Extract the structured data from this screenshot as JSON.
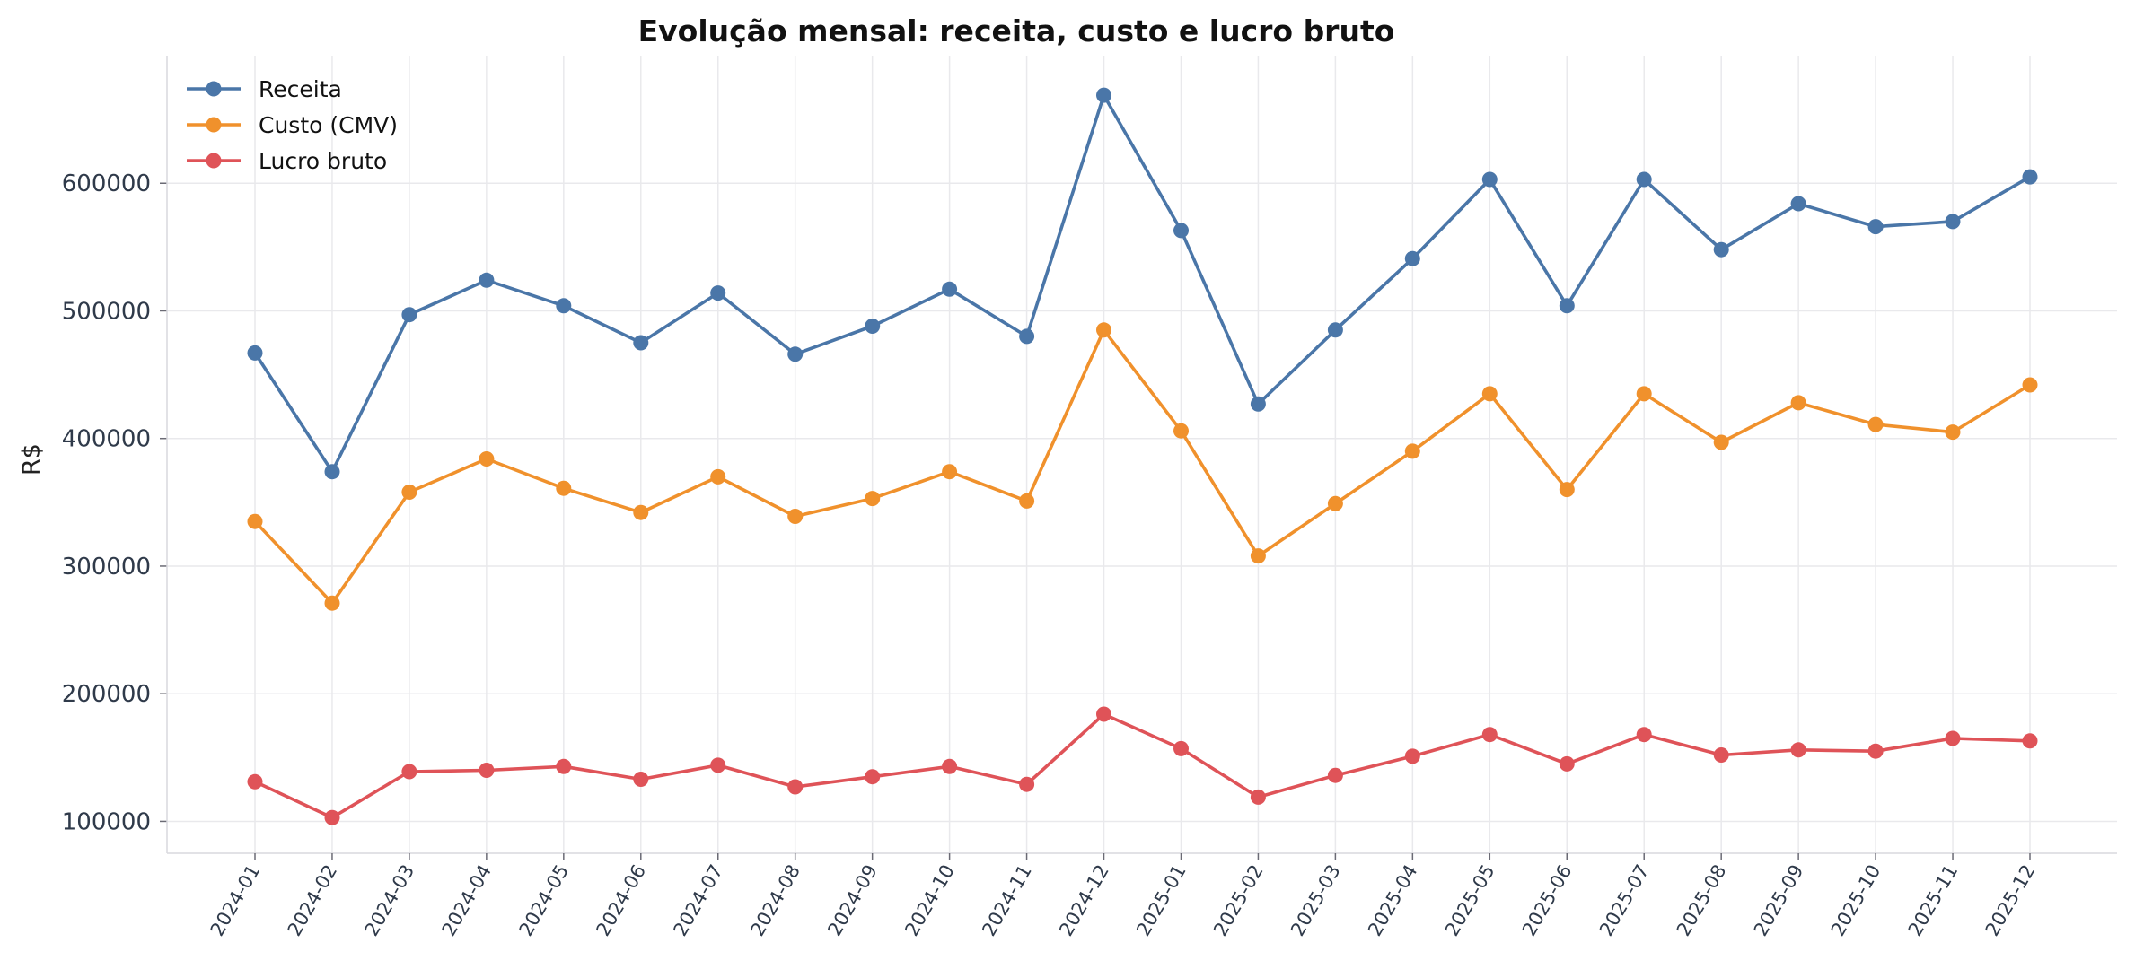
{
  "chart_data": {
    "type": "line",
    "title": "Evolução mensal: receita, custo e lucro bruto",
    "xlabel": "",
    "ylabel": "R$",
    "categories": [
      "2024-01",
      "2024-02",
      "2024-03",
      "2024-04",
      "2024-05",
      "2024-06",
      "2024-07",
      "2024-08",
      "2024-09",
      "2024-10",
      "2024-11",
      "2024-12",
      "2025-01",
      "2025-02",
      "2025-03",
      "2025-04",
      "2025-05",
      "2025-06",
      "2025-07",
      "2025-08",
      "2025-09",
      "2025-10",
      "2025-11",
      "2025-12"
    ],
    "yticks": [
      100000,
      200000,
      300000,
      400000,
      500000,
      600000
    ],
    "ylim": [
      75000,
      700000
    ],
    "grid": true,
    "legend_position": "top-left",
    "series": [
      {
        "name": "Receita",
        "color": "#4a76a8",
        "values": [
          467000,
          374000,
          497000,
          524000,
          504000,
          475000,
          514000,
          466000,
          488000,
          517000,
          480000,
          669000,
          563000,
          427000,
          485000,
          541000,
          603000,
          504000,
          603000,
          548000,
          584000,
          566000,
          570000,
          605000
        ]
      },
      {
        "name": "Custo (CMV)",
        "color": "#f0912c",
        "values": [
          335000,
          271000,
          358000,
          384000,
          361000,
          342000,
          370000,
          339000,
          353000,
          374000,
          351000,
          485000,
          406000,
          308000,
          349000,
          390000,
          435000,
          360000,
          435000,
          397000,
          428000,
          411000,
          405000,
          442000
        ]
      },
      {
        "name": "Lucro bruto",
        "color": "#df5358",
        "values": [
          131000,
          103000,
          139000,
          140000,
          143000,
          133000,
          144000,
          127000,
          135000,
          143000,
          129000,
          184000,
          157000,
          119000,
          136000,
          151000,
          168000,
          145000,
          168000,
          152000,
          156000,
          155000,
          165000,
          163000
        ]
      }
    ]
  }
}
